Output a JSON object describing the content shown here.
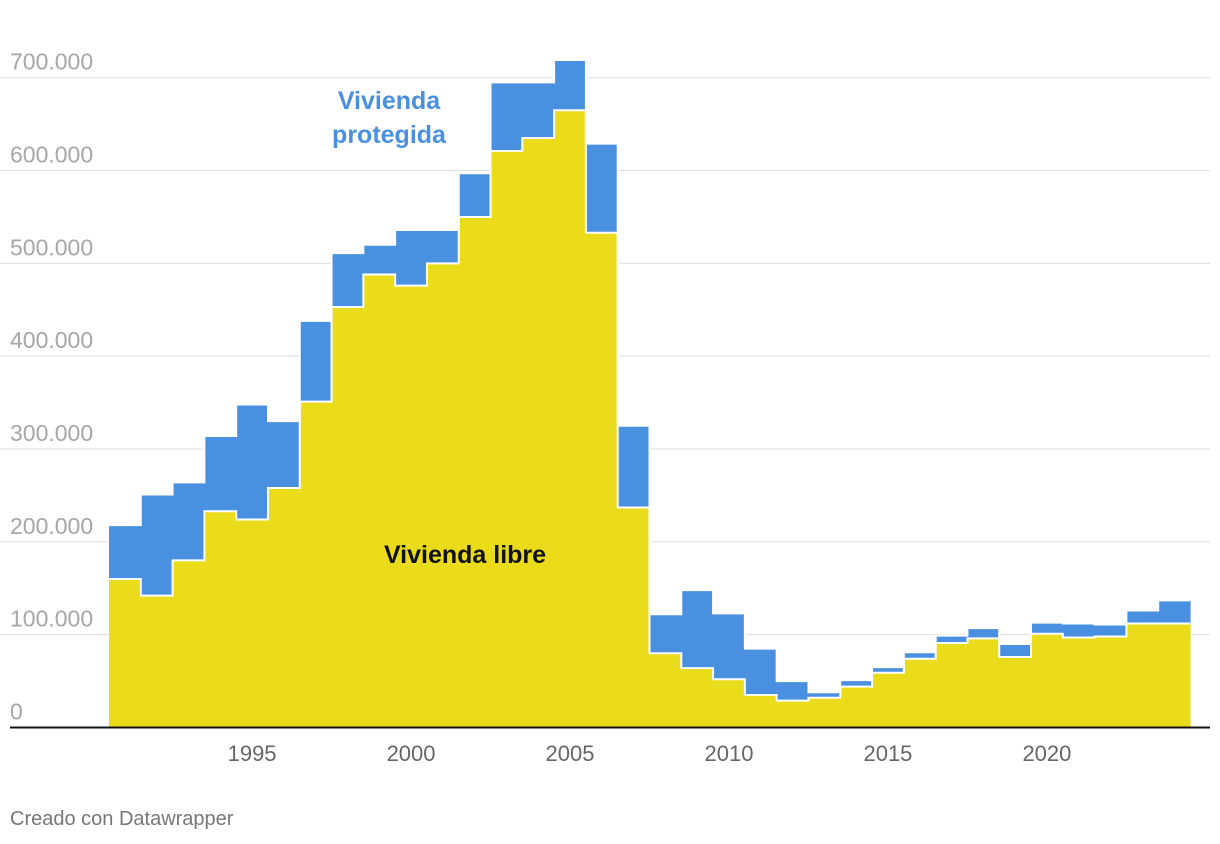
{
  "chart_data": {
    "type": "area",
    "stacked": true,
    "step": true,
    "x": [
      1991,
      1992,
      1993,
      1994,
      1995,
      1996,
      1997,
      1998,
      1999,
      2000,
      2001,
      2002,
      2003,
      2004,
      2005,
      2006,
      2007,
      2008,
      2009,
      2010,
      2011,
      2012,
      2013,
      2014,
      2015,
      2016,
      2017,
      2018,
      2019,
      2020,
      2021,
      2022,
      2023,
      2024
    ],
    "series": [
      {
        "name": "Vivienda libre",
        "color": "#eadc1a",
        "values": [
          160000,
          142000,
          180000,
          233000,
          224000,
          258000,
          351000,
          453000,
          488000,
          476000,
          500000,
          550000,
          621000,
          635000,
          665000,
          533000,
          237000,
          80000,
          64000,
          52000,
          35000,
          29000,
          32000,
          44000,
          59000,
          74000,
          91000,
          96000,
          76000,
          101000,
          97000,
          98000,
          112000,
          112000
        ]
      },
      {
        "name": "Vivienda protegida",
        "color": "#4a90e0",
        "values": [
          58000,
          109000,
          84000,
          81000,
          124000,
          72000,
          87000,
          58000,
          32000,
          60000,
          36000,
          47000,
          74000,
          60000,
          54000,
          96000,
          88000,
          42000,
          84000,
          71000,
          50000,
          21000,
          6000,
          7000,
          6000,
          7000,
          8000,
          11000,
          14000,
          12000,
          15000,
          13000,
          14000,
          25000
        ]
      }
    ],
    "title": "",
    "xlabel": "",
    "ylabel": "",
    "ylim": [
      0,
      760000
    ],
    "xlim": [
      1991,
      2024
    ],
    "xticks": [
      {
        "value": 1995,
        "label": "1995"
      },
      {
        "value": 2000,
        "label": "2000"
      },
      {
        "value": 2005,
        "label": "2005"
      },
      {
        "value": 2010,
        "label": "2010"
      },
      {
        "value": 2015,
        "label": "2015"
      },
      {
        "value": 2020,
        "label": "2020"
      }
    ],
    "yticks": [
      {
        "value": 0,
        "label": "0"
      },
      {
        "value": 100000,
        "label": "100.000"
      },
      {
        "value": 200000,
        "label": "200.000"
      },
      {
        "value": 300000,
        "label": "300.000"
      },
      {
        "value": 400000,
        "label": "400.000"
      },
      {
        "value": 500000,
        "label": "500.000"
      },
      {
        "value": 600000,
        "label": "600.000"
      },
      {
        "value": 700000,
        "label": "700.000"
      }
    ],
    "annotations": [
      {
        "series": "Vivienda protegida",
        "lines": [
          "Vivienda",
          "protegida"
        ]
      },
      {
        "series": "Vivienda libre",
        "lines": [
          "Vivienda libre"
        ]
      }
    ],
    "grid": true,
    "legend": "inline"
  },
  "footer": {
    "credit": "Creado con Datawrapper"
  },
  "colors": {
    "libre": "#eadc1a",
    "protegida": "#4a90e0",
    "protegida_text": "#4a90e0",
    "libre_text": "#111111",
    "grid": "#dddddd",
    "axis": "#111111"
  }
}
